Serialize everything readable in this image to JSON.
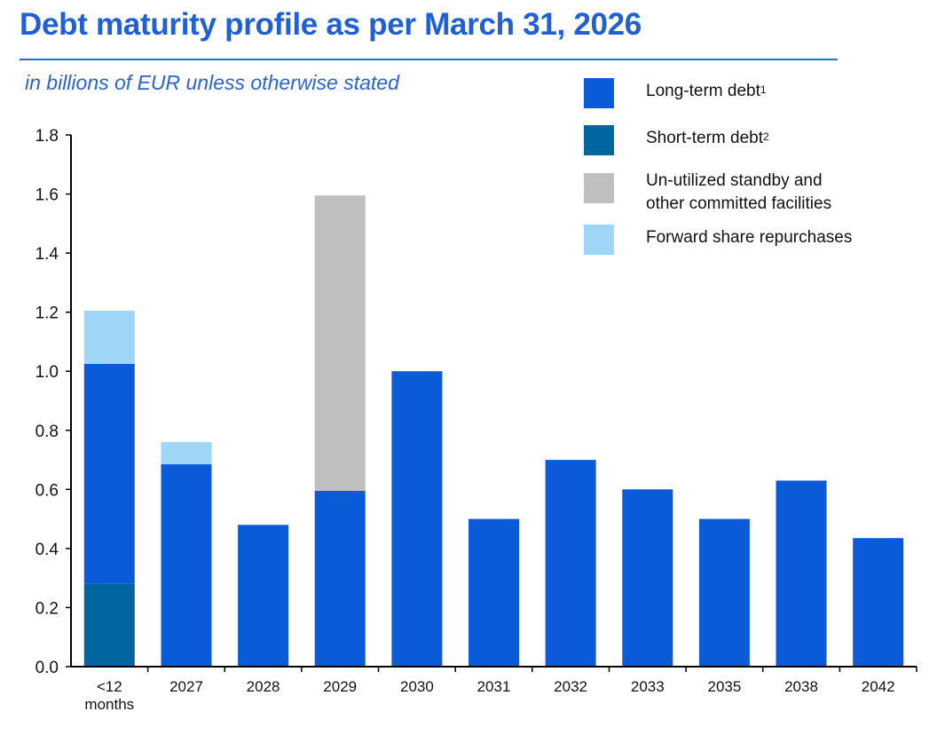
{
  "title": "Debt maturity profile as per March 31, 2026",
  "subtitle": "in billions of EUR unless otherwise stated",
  "colors": {
    "title": "#1f5fd8",
    "long_term": "#0b5bd8",
    "short_term": "#01659f",
    "standby": "#bfbfbf",
    "forward": "#9fd5f7"
  },
  "legend": [
    {
      "label": "Long-term debt",
      "sup": "1",
      "color": "#0b5bd8"
    },
    {
      "label": "Short-term debt",
      "sup": "2",
      "color": "#01659f"
    },
    {
      "label": "Un-utilized standby and\nother committed facilities",
      "sup": "",
      "color": "#bfbfbf"
    },
    {
      "label": "Forward share repurchases",
      "sup": "",
      "color": "#9fd5f7"
    }
  ],
  "chart_data": {
    "type": "bar",
    "stacked": true,
    "categories": [
      "<12\nmonths",
      "2027",
      "2028",
      "2029",
      "2030",
      "2031",
      "2032",
      "2033",
      "2035",
      "2038",
      "2042"
    ],
    "series": [
      {
        "name": "Short-term debt",
        "color": "#01659f",
        "values": [
          0.28,
          0,
          0,
          0,
          0,
          0,
          0,
          0,
          0,
          0,
          0
        ]
      },
      {
        "name": "Long-term debt",
        "color": "#0b5bd8",
        "values": [
          0.745,
          0.685,
          0.48,
          0.595,
          1.0,
          0.5,
          0.7,
          0.6,
          0.5,
          0.63,
          0.435
        ]
      },
      {
        "name": "Un-utilized standby and other committed facilities",
        "color": "#bfbfbf",
        "values": [
          0,
          0,
          0,
          1.0,
          0,
          0,
          0,
          0,
          0,
          0,
          0
        ]
      },
      {
        "name": "Forward share repurchases",
        "color": "#9fd5f7",
        "values": [
          0.18,
          0.075,
          0,
          0,
          0,
          0,
          0,
          0,
          0,
          0,
          0
        ]
      }
    ],
    "yticks": [
      "0.0",
      "0.2",
      "0.4",
      "0.6",
      "0.8",
      "1.0",
      "1.2",
      "1.4",
      "1.6",
      "1.8"
    ],
    "ylim": [
      0,
      1.8
    ],
    "xlabel": "",
    "ylabel": "",
    "grid": false,
    "legend_position": "top-right"
  }
}
